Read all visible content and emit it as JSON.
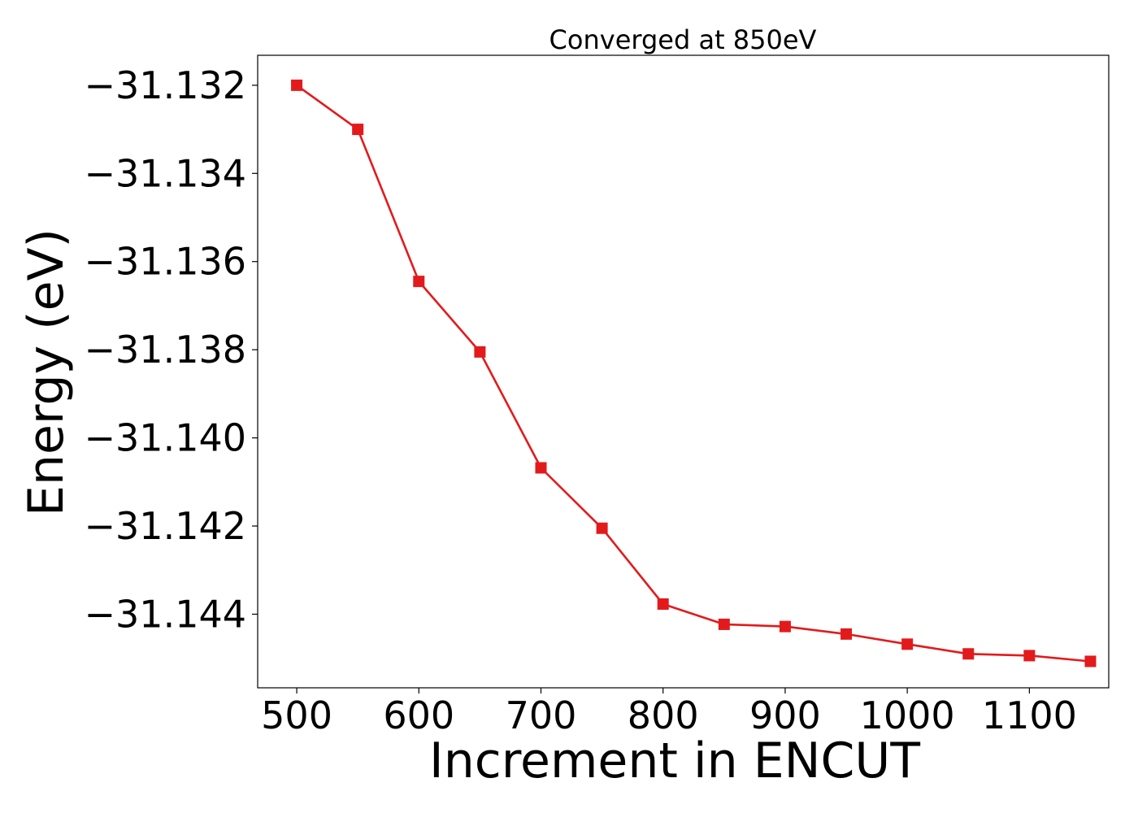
{
  "chart_data": {
    "type": "line",
    "title": "Converged at 850eV",
    "xlabel": "Increment in ENCUT",
    "ylabel": "Energy (eV)",
    "xlim": [
      468,
      1165
    ],
    "ylim": [
      -31.14567,
      -31.13132
    ],
    "xticks": [
      500,
      600,
      700,
      800,
      900,
      1000,
      1100
    ],
    "yticks": [
      -31.132,
      -31.134,
      -31.136,
      -31.138,
      -31.14,
      -31.142,
      -31.144
    ],
    "ytick_labels": [
      "−31.132",
      "−31.134",
      "−31.136",
      "−31.138",
      "−31.140",
      "−31.142",
      "−31.144"
    ],
    "grid": false,
    "legend": "none",
    "series": [
      {
        "color": "#e31a1c",
        "marker": "square",
        "x": [
          500,
          550,
          600,
          650,
          700,
          750,
          800,
          850,
          900,
          950,
          1000,
          1050,
          1100,
          1150
        ],
        "y": [
          -31.132,
          -31.133,
          -31.13645,
          -31.13805,
          -31.14068,
          -31.14205,
          -31.14377,
          -31.14423,
          -31.14428,
          -31.14445,
          -31.14468,
          -31.1449,
          -31.14494,
          -31.14507
        ]
      }
    ]
  }
}
